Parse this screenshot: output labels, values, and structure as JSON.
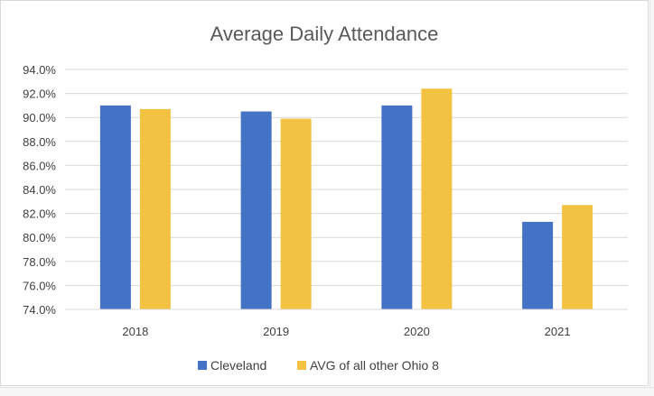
{
  "chart_data": {
    "type": "bar",
    "title": "Average Daily Attendance",
    "xlabel": "",
    "ylabel": "",
    "categories": [
      "2018",
      "2019",
      "2020",
      "2021"
    ],
    "series": [
      {
        "name": "Cleveland",
        "color": "#4472C4",
        "values": [
          91.0,
          90.5,
          91.0,
          81.3
        ]
      },
      {
        "name": "AVG of all other Ohio 8",
        "color": "#F4C242",
        "values": [
          90.7,
          89.9,
          92.4,
          82.7
        ]
      }
    ],
    "ylim": [
      74.0,
      94.0
    ],
    "yticks": [
      74.0,
      76.0,
      78.0,
      80.0,
      82.0,
      84.0,
      86.0,
      88.0,
      90.0,
      92.0,
      94.0
    ],
    "ytick_format": "percent_1dp",
    "grid": true,
    "legend_position": "bottom"
  }
}
